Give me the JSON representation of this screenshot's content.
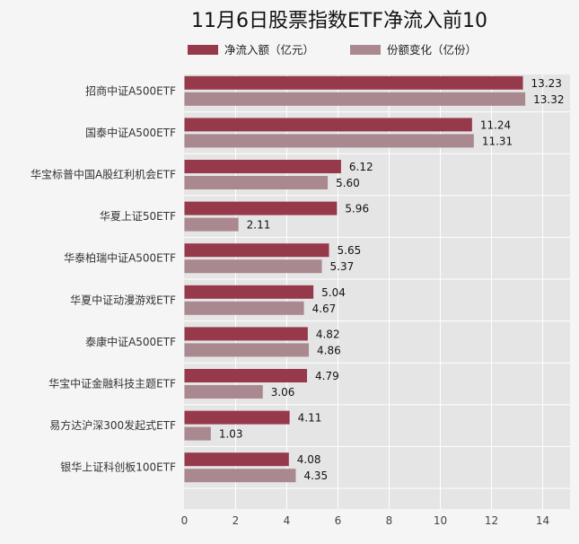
{
  "chart_data": {
    "type": "bar",
    "orientation": "horizontal",
    "title": "11月6日股票指数ETF净流入前10",
    "categories": [
      "招商中证A500ETF",
      "国泰中证A500ETF",
      "华宝标普中国A股红利机会ETF",
      "华夏上证50ETF",
      "华泰柏瑞中证A500ETF",
      "华夏中证动漫游戏ETF",
      "泰康中证A500ETF",
      "华宝中证金融科技主题ETF",
      "易方达沪深300发起式ETF",
      "银华上证科创板100ETF"
    ],
    "series": [
      {
        "name": "净流入额（亿元）",
        "color": "#963a4b",
        "values": [
          13.23,
          11.24,
          6.12,
          5.96,
          5.65,
          5.04,
          4.82,
          4.79,
          4.11,
          4.08
        ],
        "labels": [
          "13.23",
          "11.24",
          "6.12",
          "5.96",
          "5.65",
          "5.04",
          "4.82",
          "4.79",
          "4.11",
          "4.08"
        ]
      },
      {
        "name": "份额变化（亿份）",
        "color": "#aa8890",
        "values": [
          13.32,
          11.31,
          5.6,
          2.11,
          5.37,
          4.67,
          4.86,
          3.06,
          1.03,
          4.35
        ],
        "labels": [
          "13.32",
          "11.31",
          "5.60",
          "2.11",
          "5.37",
          "4.67",
          "4.86",
          "3.06",
          "1.03",
          "4.35"
        ]
      }
    ],
    "xlim": [
      0,
      15
    ],
    "xticks": [
      0,
      2,
      4,
      6,
      8,
      10,
      12,
      14
    ],
    "xtick_labels": [
      "0",
      "2",
      "4",
      "6",
      "8",
      "10",
      "12",
      "14"
    ],
    "grid": true,
    "legend_position": "top-center",
    "plot_background": "#e5e5e5",
    "background": "#f5f5f5"
  }
}
